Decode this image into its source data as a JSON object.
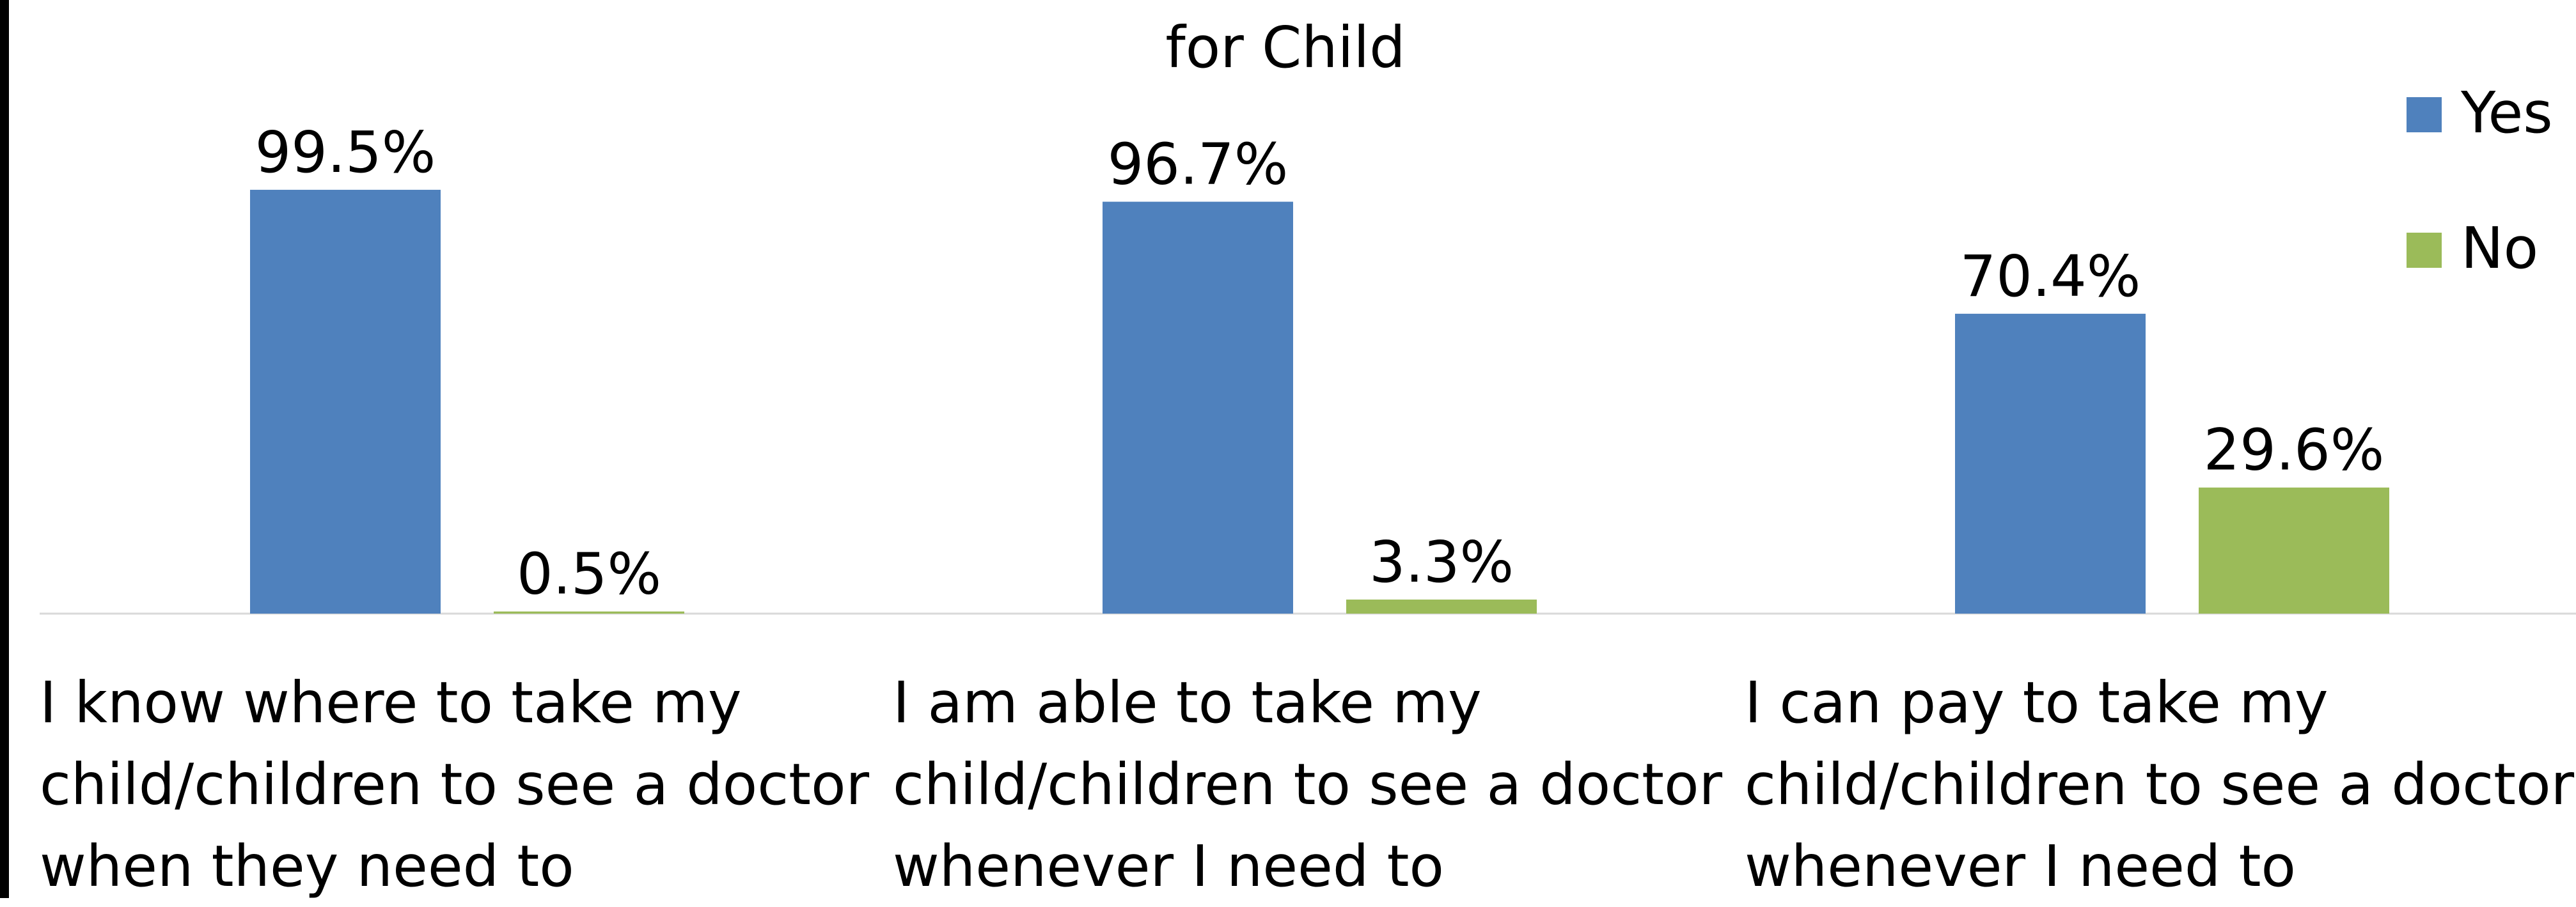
{
  "chart_data": {
    "type": "bar",
    "title": "for Child",
    "categories": [
      "I know where to take my\nchild/children to see a doctor\nwhen they need to",
      "I am able to take my\nchild/children to see a doctor\nwhenever I need to",
      "I can pay to take my\nchild/children to see a doctor\nwhenever I need to"
    ],
    "series": [
      {
        "name": "Yes",
        "values": [
          99.5,
          96.7,
          70.4
        ],
        "labels": [
          "99.5%",
          "96.7%",
          "70.4%"
        ],
        "color": "#4f81bd"
      },
      {
        "name": "No",
        "values": [
          0.5,
          3.3,
          29.6
        ],
        "labels": [
          "0.5%",
          "3.3%",
          "29.6%"
        ],
        "color": "#9bbb59"
      }
    ],
    "ylim": [
      0,
      100
    ],
    "grid": false,
    "legend": "top-right",
    "axis_color": "#d9d9d9",
    "frame_color": "#000000"
  }
}
